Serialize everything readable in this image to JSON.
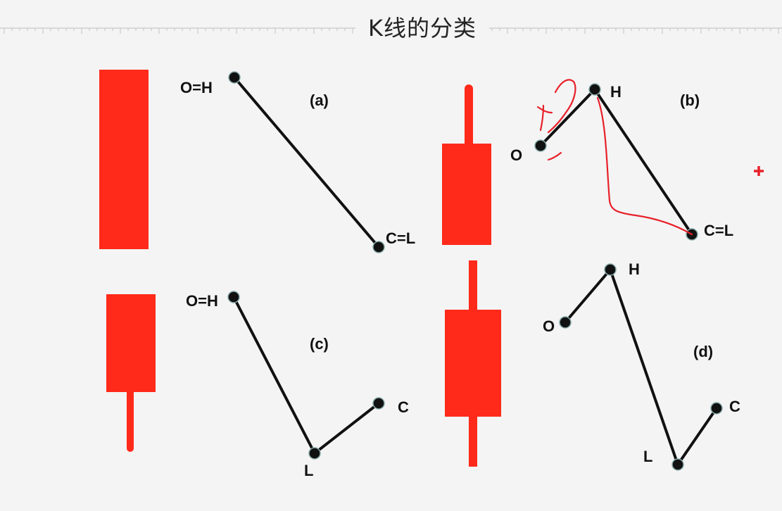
{
  "title": "K线的分类",
  "colors": {
    "candle": "#ff2a1a",
    "line": "#111111",
    "annotation": "#e8202a",
    "background": "#f4f4f4"
  },
  "panels": [
    {
      "id": "a",
      "tag": "(a)",
      "labels": {
        "open_high": "O=H",
        "close_low": "C=L"
      }
    },
    {
      "id": "b",
      "tag": "(b)",
      "labels": {
        "open": "O",
        "high": "H",
        "close_low": "C=L"
      }
    },
    {
      "id": "c",
      "tag": "(c)",
      "labels": {
        "open_high": "O=H",
        "low": "L",
        "close": "C"
      }
    },
    {
      "id": "d",
      "tag": "(d)",
      "labels": {
        "open": "O",
        "high": "H",
        "low": "L",
        "close": "C"
      }
    }
  ]
}
